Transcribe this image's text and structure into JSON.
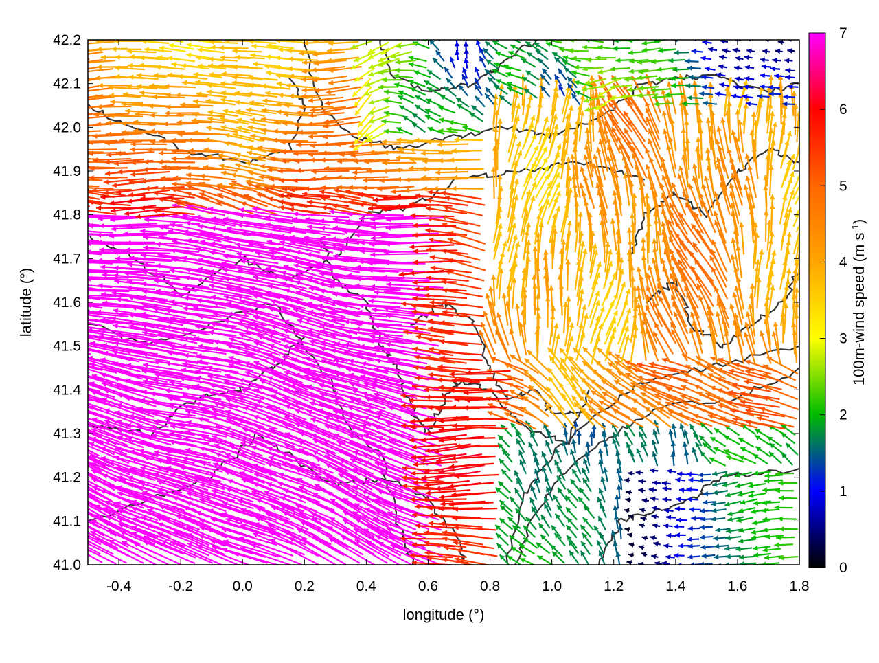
{
  "chart_data": {
    "type": "quiver",
    "title": "",
    "xlabel": "longitude (°)",
    "ylabel": "latitude (°)",
    "xlim": [
      -0.5,
      1.8
    ],
    "ylim": [
      41.0,
      42.2
    ],
    "x_ticks": [
      "-0.4",
      "-0.2",
      "0.0",
      "0.2",
      "0.4",
      "0.6",
      "0.8",
      "1.0",
      "1.2",
      "1.4",
      "1.6",
      "1.8"
    ],
    "y_ticks": [
      "41.0",
      "41.1",
      "41.2",
      "41.3",
      "41.4",
      "41.5",
      "41.6",
      "41.7",
      "41.8",
      "41.9",
      "42.0",
      "42.1",
      "42.2"
    ],
    "colorbar": {
      "label_main": "100m-wind speed (m s",
      "label_sup": "-1",
      "label_end": ")",
      "range": [
        0,
        7
      ],
      "ticks": [
        "0",
        "1",
        "2",
        "3",
        "4",
        "5",
        "6",
        "7"
      ],
      "palette": [
        "#000000",
        "#0000ff",
        "#00aa00",
        "#00dd00",
        "#ffff00",
        "#ffa500",
        "#ff0000",
        "#ff00ff"
      ]
    },
    "contour_color": "#333333",
    "grid": false,
    "wind_field_regions": [
      {
        "region": "southwest lowlands (lon -0.5 to 0.6, lat 41.0 to 41.7)",
        "direction": "westward (easterly flow)",
        "speed": 7
      },
      {
        "region": "north band (lon -0.5 to 0.7, lat 41.8 to 42.2)",
        "direction": "westward",
        "speed": 5
      },
      {
        "region": "northeast hills (lon 0.8 to 1.8, lat 41.5 to 42.1)",
        "direction": "northward",
        "speed": 4
      },
      {
        "region": "northwest highlands (lon 0.4 to 1.2, lat 42.0 to 42.2)",
        "direction": "mixed",
        "speed": 2
      },
      {
        "region": "southeast coast (lon 1.3 to 1.8, lat 41.0 to 41.2)",
        "direction": "westward",
        "speed": 0.8
      },
      {
        "region": "central (lon 0.6 to 1.0, lat 41.3 to 41.5)",
        "direction": "westward",
        "speed": 5.5
      }
    ]
  }
}
